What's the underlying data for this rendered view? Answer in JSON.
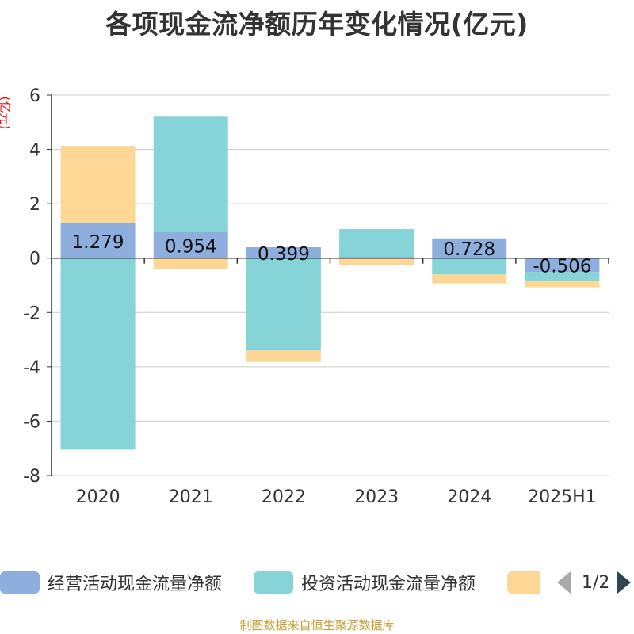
{
  "title": "各项现金流净额历年变化情况(亿元)",
  "y_unit": "(亿元)",
  "colors": {
    "operating": "#8eaede",
    "investing": "#86d4d8",
    "financing": "#fed797",
    "axis": "#333333",
    "grid": "#cccccc",
    "title": "#333333",
    "unit": "#e0120f",
    "footer": "#c8a03a"
  },
  "chart_data": {
    "type": "bar",
    "stacked": true,
    "title": "各项现金流净额历年变化情况(亿元)",
    "ylabel": "(亿元)",
    "categories": [
      "2020",
      "2021",
      "2022",
      "2023",
      "2024",
      "2025H1"
    ],
    "ylim": [
      -8,
      6
    ],
    "yticks": [
      6,
      4,
      2,
      0,
      -2,
      -4,
      -6,
      -8
    ],
    "grid": true,
    "legend_position": "bottom",
    "series": [
      {
        "name": "经营活动现金流量净额",
        "values": [
          1.279,
          0.954,
          0.399,
          0.05,
          0.728,
          -0.506
        ],
        "labels": [
          "1.279",
          "0.954",
          "0.399",
          "",
          "0.728",
          "-0.506"
        ]
      },
      {
        "name": "投资活动现金流量净额",
        "values": [
          -7.05,
          4.25,
          -3.4,
          1.02,
          -0.6,
          -0.35
        ]
      },
      {
        "name": "",
        "values": [
          2.85,
          -0.4,
          -0.42,
          -0.25,
          -0.33,
          -0.22
        ]
      }
    ]
  },
  "legend": {
    "items": [
      "经营活动现金流量净额",
      "投资活动现金流量净额",
      ""
    ],
    "page": "1/2"
  },
  "footer": "制图数据来自恒生聚源数据库"
}
